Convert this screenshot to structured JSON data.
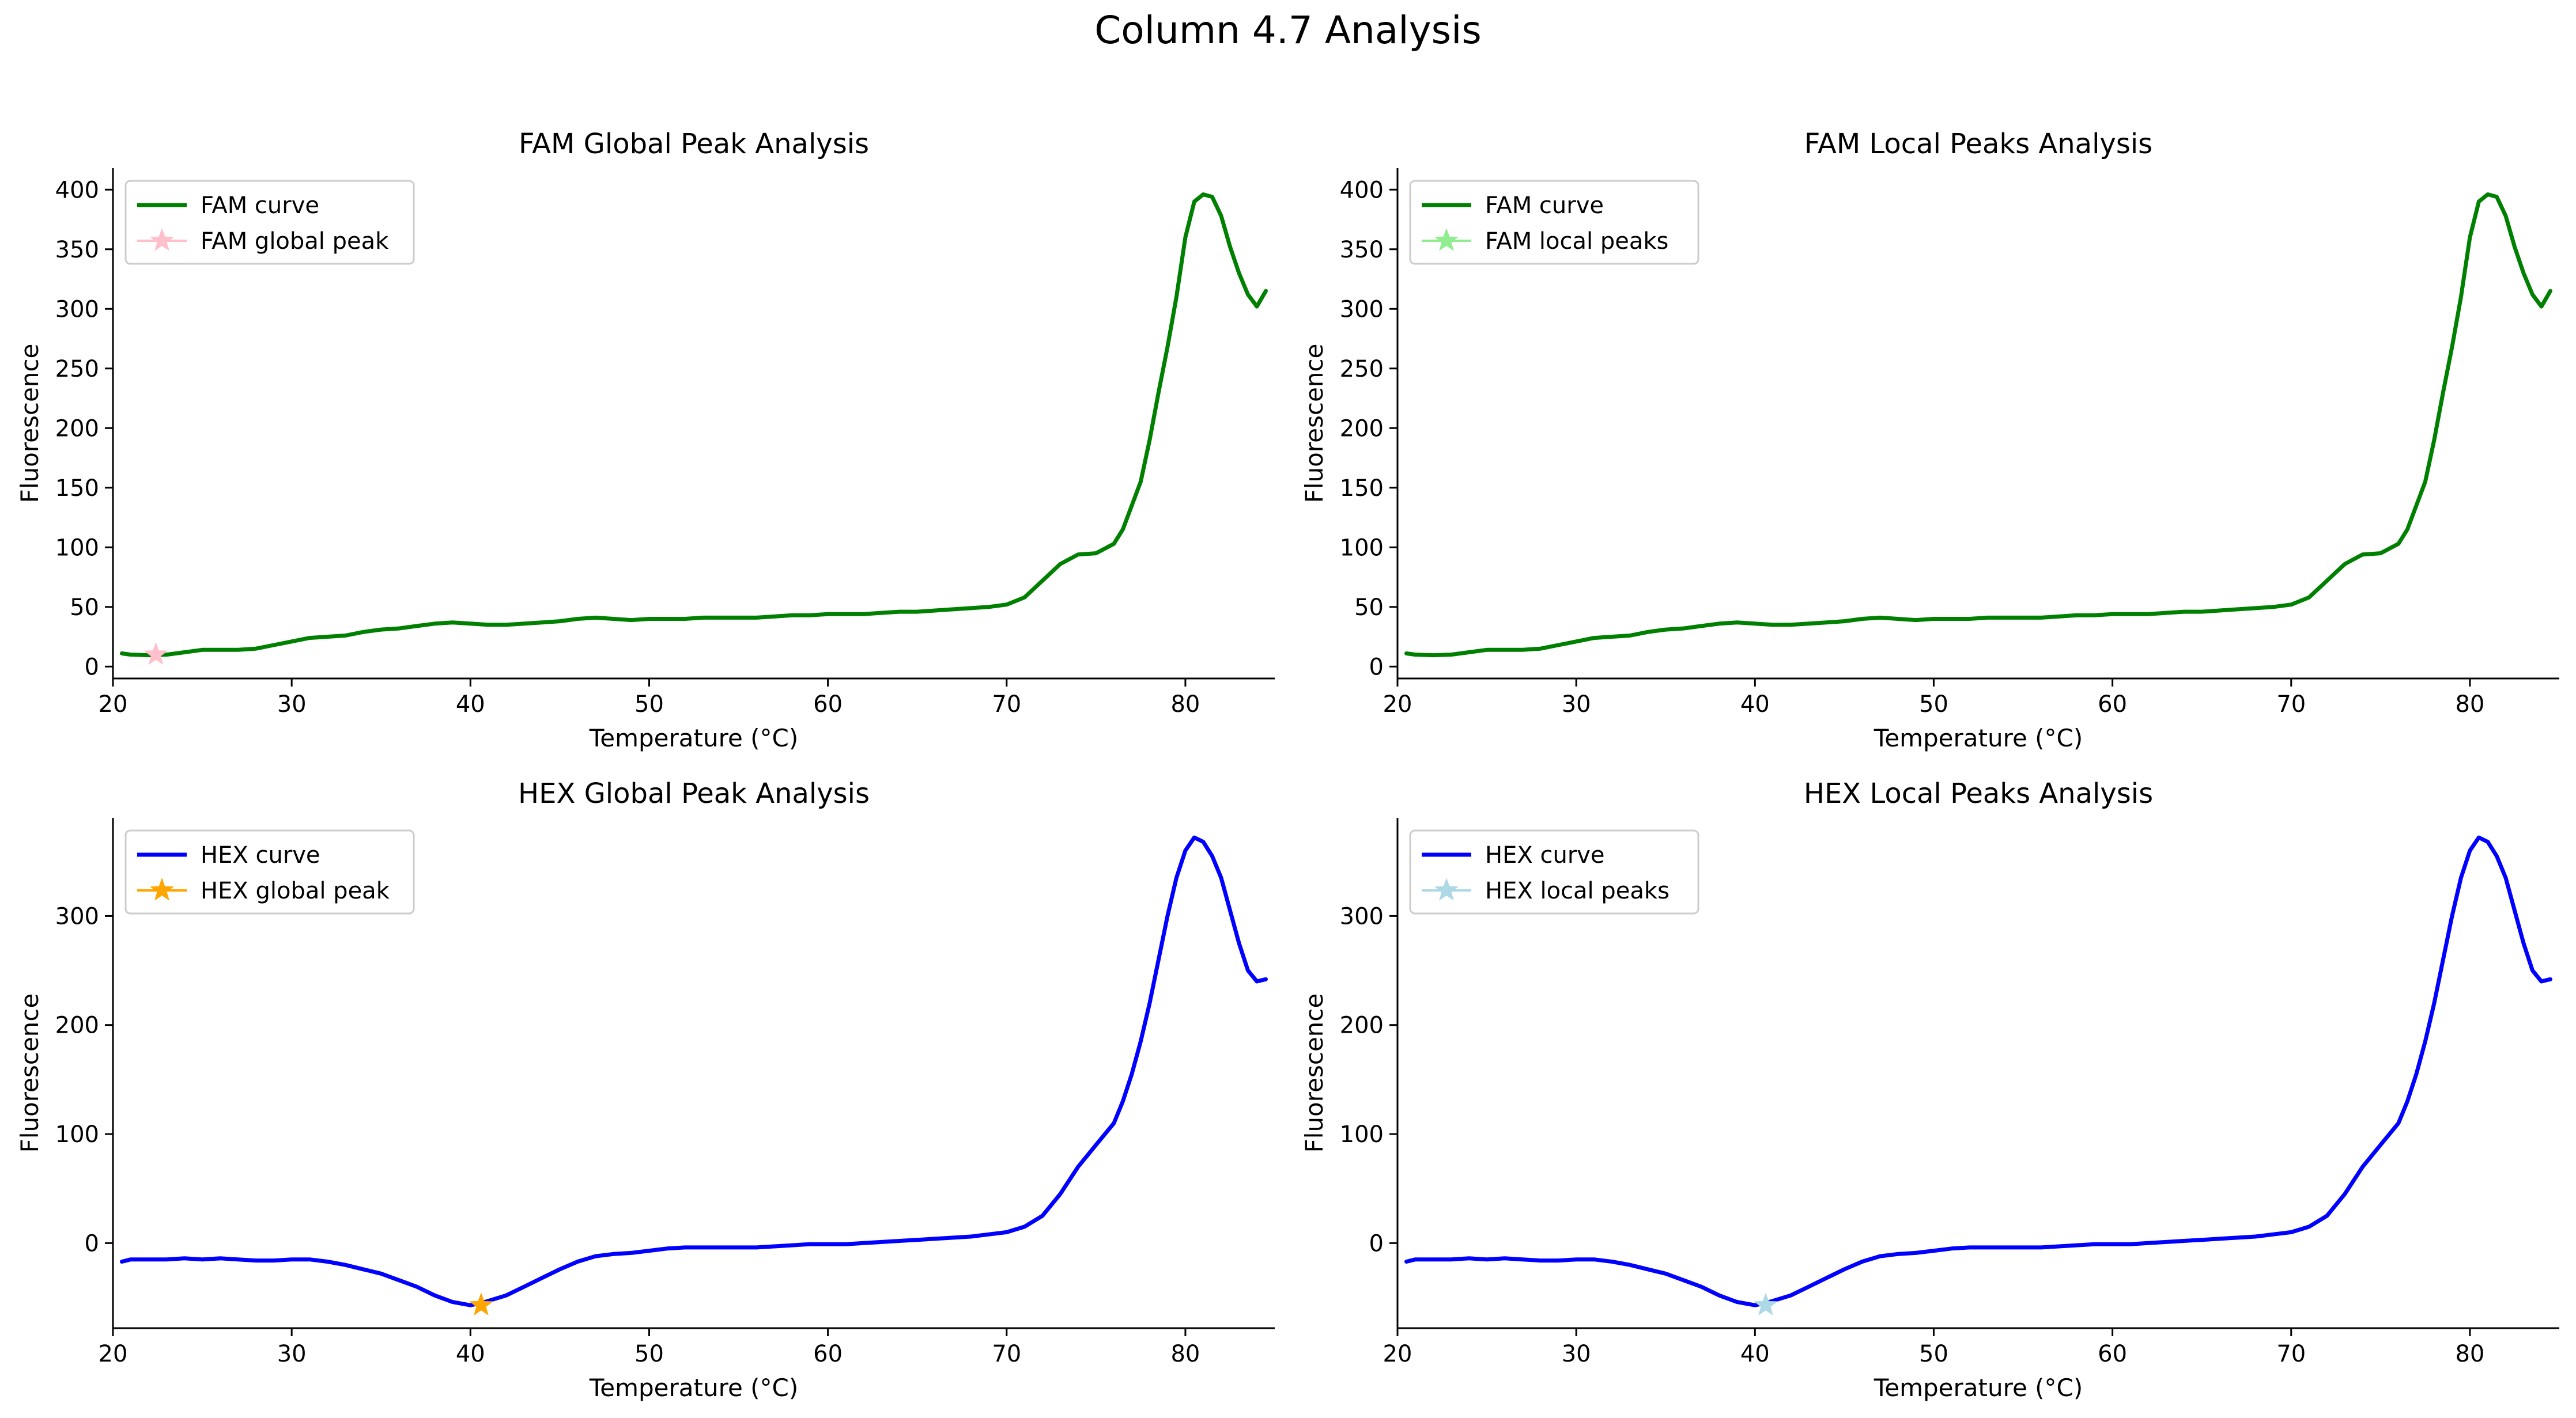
{
  "figure_title": "Column 4.7 Analysis",
  "chart_data": [
    {
      "type": "line",
      "title": "FAM Global Peak Analysis",
      "xlabel": "Temperature (°C)",
      "ylabel": "Fluorescence",
      "xlim": [
        20,
        85
      ],
      "ylim": [
        -10,
        418
      ],
      "xticks": [
        20,
        30,
        40,
        50,
        60,
        70,
        80
      ],
      "yticks": [
        0,
        50,
        100,
        150,
        200,
        250,
        300,
        350,
        400
      ],
      "legend_position": "top-left",
      "series": [
        {
          "name": "FAM curve",
          "color": "#008000",
          "kind": "line",
          "x": [
            20.5,
            21,
            22,
            23,
            24,
            25,
            26,
            27,
            28,
            29,
            30,
            31,
            32,
            33,
            34,
            35,
            36,
            37,
            38,
            39,
            40,
            41,
            42,
            43,
            44,
            45,
            46,
            47,
            48,
            49,
            50,
            51,
            52,
            53,
            54,
            55,
            56,
            57,
            58,
            59,
            60,
            61,
            62,
            63,
            64,
            65,
            66,
            67,
            68,
            69,
            70,
            71,
            72,
            73,
            74,
            75,
            76,
            76.5,
            77,
            77.5,
            78,
            78.5,
            79,
            79.5,
            80,
            80.5,
            81,
            81.5,
            82,
            82.5,
            83,
            83.5,
            84,
            84.5
          ],
          "y": [
            11,
            10,
            9.5,
            10,
            12,
            14,
            14,
            14,
            15,
            18,
            21,
            24,
            25,
            26,
            29,
            31,
            32,
            34,
            36,
            37,
            36,
            35,
            35,
            36,
            37,
            38,
            40,
            41,
            40,
            39,
            40,
            40,
            40,
            41,
            41,
            41,
            41,
            42,
            43,
            43,
            44,
            44,
            44,
            45,
            46,
            46,
            47,
            48,
            49,
            50,
            52,
            58,
            72,
            86,
            94,
            95,
            103,
            115,
            135,
            155,
            190,
            230,
            268,
            310,
            360,
            390,
            396,
            394,
            378,
            352,
            330,
            312,
            302,
            315
          ]
        },
        {
          "name": "FAM global peak",
          "color": "#ffc0cb",
          "kind": "marker",
          "x": [
            22.4
          ],
          "y": [
            10
          ]
        }
      ]
    },
    {
      "type": "line",
      "title": "FAM Local Peaks Analysis",
      "xlabel": "Temperature (°C)",
      "ylabel": "Fluorescence",
      "xlim": [
        20,
        85
      ],
      "ylim": [
        -10,
        418
      ],
      "xticks": [
        20,
        30,
        40,
        50,
        60,
        70,
        80
      ],
      "yticks": [
        0,
        50,
        100,
        150,
        200,
        250,
        300,
        350,
        400
      ],
      "legend_position": "top-left",
      "series": [
        {
          "name": "FAM curve",
          "color": "#008000",
          "kind": "line",
          "x": [
            20.5,
            21,
            22,
            23,
            24,
            25,
            26,
            27,
            28,
            29,
            30,
            31,
            32,
            33,
            34,
            35,
            36,
            37,
            38,
            39,
            40,
            41,
            42,
            43,
            44,
            45,
            46,
            47,
            48,
            49,
            50,
            51,
            52,
            53,
            54,
            55,
            56,
            57,
            58,
            59,
            60,
            61,
            62,
            63,
            64,
            65,
            66,
            67,
            68,
            69,
            70,
            71,
            72,
            73,
            74,
            75,
            76,
            76.5,
            77,
            77.5,
            78,
            78.5,
            79,
            79.5,
            80,
            80.5,
            81,
            81.5,
            82,
            82.5,
            83,
            83.5,
            84,
            84.5
          ],
          "y": [
            11,
            10,
            9.5,
            10,
            12,
            14,
            14,
            14,
            15,
            18,
            21,
            24,
            25,
            26,
            29,
            31,
            32,
            34,
            36,
            37,
            36,
            35,
            35,
            36,
            37,
            38,
            40,
            41,
            40,
            39,
            40,
            40,
            40,
            41,
            41,
            41,
            41,
            42,
            43,
            43,
            44,
            44,
            44,
            45,
            46,
            46,
            47,
            48,
            49,
            50,
            52,
            58,
            72,
            86,
            94,
            95,
            103,
            115,
            135,
            155,
            190,
            230,
            268,
            310,
            360,
            390,
            396,
            394,
            378,
            352,
            330,
            312,
            302,
            315
          ]
        },
        {
          "name": "FAM local peaks",
          "color": "#90ee90",
          "kind": "marker-legend-only",
          "x": [],
          "y": []
        }
      ]
    },
    {
      "type": "line",
      "title": "HEX Global Peak Analysis",
      "xlabel": "Temperature (°C)",
      "ylabel": "Fluorescence",
      "xlim": [
        20,
        85
      ],
      "ylim": [
        -78,
        390
      ],
      "xticks": [
        20,
        30,
        40,
        50,
        60,
        70,
        80
      ],
      "yticks": [
        0,
        100,
        200,
        300
      ],
      "legend_position": "top-left",
      "series": [
        {
          "name": "HEX curve",
          "color": "#0000ff",
          "kind": "line",
          "x": [
            20.5,
            21,
            22,
            23,
            24,
            25,
            26,
            27,
            28,
            29,
            30,
            31,
            32,
            33,
            34,
            35,
            36,
            37,
            38,
            39,
            40,
            40.6,
            41,
            42,
            43,
            44,
            45,
            46,
            47,
            48,
            49,
            50,
            51,
            52,
            53,
            54,
            55,
            56,
            57,
            58,
            59,
            60,
            61,
            62,
            63,
            64,
            65,
            66,
            67,
            68,
            69,
            70,
            71,
            72,
            73,
            74,
            75,
            76,
            76.5,
            77,
            77.5,
            78,
            78.5,
            79,
            79.5,
            80,
            80.5,
            81,
            81.5,
            82,
            82.5,
            83,
            83.5,
            84,
            84.5
          ],
          "y": [
            -17,
            -15,
            -15,
            -15,
            -14,
            -15,
            -14,
            -15,
            -16,
            -16,
            -15,
            -15,
            -17,
            -20,
            -24,
            -28,
            -34,
            -40,
            -48,
            -54,
            -57,
            -55,
            -53,
            -48,
            -40,
            -32,
            -24,
            -17,
            -12,
            -10,
            -9,
            -7,
            -5,
            -4,
            -4,
            -4,
            -4,
            -4,
            -3,
            -2,
            -1,
            -1,
            -1,
            0,
            1,
            2,
            3,
            4,
            5,
            6,
            8,
            10,
            15,
            25,
            45,
            70,
            90,
            110,
            130,
            155,
            185,
            220,
            260,
            300,
            335,
            360,
            372,
            368,
            355,
            335,
            305,
            275,
            250,
            240,
            242
          ]
        },
        {
          "name": "HEX global peak",
          "color": "#ffa500",
          "kind": "marker",
          "x": [
            40.6
          ],
          "y": [
            -57
          ]
        }
      ]
    },
    {
      "type": "line",
      "title": "HEX Local Peaks Analysis",
      "xlabel": "Temperature (°C)",
      "ylabel": "Fluorescence",
      "xlim": [
        20,
        85
      ],
      "ylim": [
        -78,
        390
      ],
      "xticks": [
        20,
        30,
        40,
        50,
        60,
        70,
        80
      ],
      "yticks": [
        0,
        100,
        200,
        300
      ],
      "legend_position": "top-left",
      "series": [
        {
          "name": "HEX curve",
          "color": "#0000ff",
          "kind": "line",
          "x": [
            20.5,
            21,
            22,
            23,
            24,
            25,
            26,
            27,
            28,
            29,
            30,
            31,
            32,
            33,
            34,
            35,
            36,
            37,
            38,
            39,
            40,
            40.6,
            41,
            42,
            43,
            44,
            45,
            46,
            47,
            48,
            49,
            50,
            51,
            52,
            53,
            54,
            55,
            56,
            57,
            58,
            59,
            60,
            61,
            62,
            63,
            64,
            65,
            66,
            67,
            68,
            69,
            70,
            71,
            72,
            73,
            74,
            75,
            76,
            76.5,
            77,
            77.5,
            78,
            78.5,
            79,
            79.5,
            80,
            80.5,
            81,
            81.5,
            82,
            82.5,
            83,
            83.5,
            84,
            84.5
          ],
          "y": [
            -17,
            -15,
            -15,
            -15,
            -14,
            -15,
            -14,
            -15,
            -16,
            -16,
            -15,
            -15,
            -17,
            -20,
            -24,
            -28,
            -34,
            -40,
            -48,
            -54,
            -57,
            -55,
            -53,
            -48,
            -40,
            -32,
            -24,
            -17,
            -12,
            -10,
            -9,
            -7,
            -5,
            -4,
            -4,
            -4,
            -4,
            -4,
            -3,
            -2,
            -1,
            -1,
            -1,
            0,
            1,
            2,
            3,
            4,
            5,
            6,
            8,
            10,
            15,
            25,
            45,
            70,
            90,
            110,
            130,
            155,
            185,
            220,
            260,
            300,
            335,
            360,
            372,
            368,
            355,
            335,
            305,
            275,
            250,
            240,
            242
          ]
        },
        {
          "name": "HEX local peaks",
          "color": "#add8e6",
          "kind": "marker",
          "x": [
            40.6
          ],
          "y": [
            -57
          ]
        }
      ]
    }
  ]
}
